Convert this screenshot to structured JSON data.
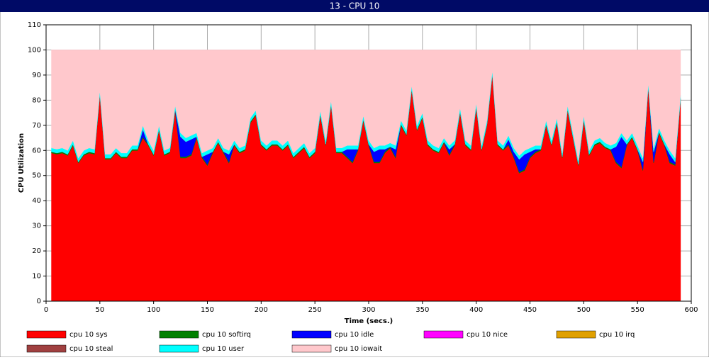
{
  "chart_data": {
    "type": "stacked_area",
    "title": "13 - CPU 10",
    "xlabel": "Time (secs.)",
    "ylabel": "CPU Utilization",
    "xlim": [
      0,
      600
    ],
    "xticks": [
      0,
      50,
      100,
      150,
      200,
      250,
      300,
      350,
      400,
      450,
      500,
      550,
      600
    ],
    "ylim": [
      0,
      110
    ],
    "yticks": [
      0,
      10,
      20,
      30,
      40,
      50,
      60,
      70,
      80,
      90,
      100,
      110
    ],
    "grid": true,
    "x": [
      5,
      10,
      15,
      20,
      25,
      30,
      35,
      40,
      45,
      50,
      55,
      60,
      65,
      70,
      75,
      80,
      85,
      90,
      95,
      100,
      105,
      110,
      115,
      120,
      125,
      130,
      135,
      140,
      145,
      150,
      155,
      160,
      165,
      170,
      175,
      180,
      185,
      190,
      195,
      200,
      205,
      210,
      215,
      220,
      225,
      230,
      235,
      240,
      245,
      250,
      255,
      260,
      265,
      270,
      275,
      280,
      285,
      290,
      295,
      300,
      305,
      310,
      315,
      320,
      325,
      330,
      335,
      340,
      345,
      350,
      355,
      360,
      365,
      370,
      375,
      380,
      385,
      390,
      395,
      400,
      405,
      410,
      415,
      420,
      425,
      430,
      435,
      440,
      445,
      450,
      455,
      460,
      465,
      470,
      475,
      480,
      485,
      490,
      495,
      500,
      505,
      510,
      515,
      520,
      525,
      530,
      535,
      540,
      545,
      550,
      555,
      560,
      565,
      570,
      575,
      580,
      585,
      590
    ],
    "series": [
      {
        "name": "cpu 10 sys",
        "color": "#ff0000",
        "values": [
          59,
          58.5,
          59,
          58,
          62,
          55,
          58,
          59,
          58.5,
          82,
          56.5,
          56.5,
          59,
          57,
          57,
          60,
          60,
          65,
          62,
          58,
          68,
          58,
          59,
          76,
          57,
          57,
          58,
          65,
          57,
          54,
          59,
          63,
          59,
          55,
          62,
          59,
          60,
          71,
          74,
          62,
          60,
          62,
          62,
          60,
          62,
          57,
          59,
          61,
          57,
          59,
          74,
          62,
          78,
          59,
          59,
          57,
          55,
          60,
          72,
          62,
          55,
          55,
          59,
          61,
          57,
          70,
          66,
          84,
          68,
          73,
          62,
          60,
          59,
          63,
          58,
          62,
          75,
          62,
          60,
          77,
          60,
          70,
          90,
          62,
          60,
          62,
          57,
          51,
          52,
          57,
          59,
          60,
          70,
          62,
          71,
          57,
          76,
          65,
          54,
          72,
          58,
          62,
          63,
          61,
          60,
          55,
          53,
          62,
          65,
          60,
          52,
          85,
          55,
          67,
          62,
          55,
          54,
          80
        ]
      },
      {
        "name": "cpu 10 softirq",
        "color": "#008000",
        "values": [
          0.5,
          0.5,
          0.5,
          0.5,
          0.5,
          0.5,
          0.5,
          0.5,
          0.5,
          0.5,
          0.5,
          0.5,
          0.5,
          0.5,
          0.5,
          0.5,
          0.5,
          0.5,
          0.5,
          0.5,
          0.5,
          0.5,
          0.5,
          0.5,
          0.5,
          0.5,
          0.5,
          0.5,
          0.5,
          0.5,
          0.5,
          0.5,
          0.5,
          0.5,
          0.5,
          0.5,
          0.5,
          0.5,
          0.5,
          0.5,
          0.5,
          0.5,
          0.5,
          0.5,
          0.5,
          0.5,
          0.5,
          0.5,
          0.5,
          0.5,
          0.5,
          0.5,
          0.5,
          0.5,
          0.5,
          0.5,
          0.5,
          0.5,
          0.5,
          0.5,
          0.5,
          0.5,
          0.5,
          0.5,
          0.5,
          0.5,
          0.5,
          0.5,
          0.5,
          0.5,
          0.5,
          0.5,
          0.5,
          0.5,
          0.5,
          0.5,
          0.5,
          0.5,
          0.5,
          0.5,
          0.5,
          0.5,
          0.5,
          0.5,
          0.5,
          0.5,
          0.5,
          0.5,
          0.5,
          0.5,
          0.5,
          0.5,
          0.5,
          0.5,
          0.5,
          0.5,
          0.5,
          0.5,
          0.5,
          0.5,
          0.5,
          0.5,
          0.5,
          0.5,
          0.5,
          0.5,
          0.5,
          0.5,
          0.5,
          0.5,
          0.5,
          0.5,
          0.5,
          0.5,
          0.5,
          0.5,
          0.5,
          0.5
        ]
      },
      {
        "name": "cpu 10 idle",
        "color": "#0000ff",
        "values": [
          0,
          0,
          0,
          0,
          0,
          0,
          0,
          0,
          0,
          0,
          0,
          0,
          0,
          0,
          0,
          0,
          0,
          3,
          0,
          0,
          0,
          0,
          0,
          0,
          8,
          6,
          6,
          0,
          0,
          4,
          0,
          0,
          0,
          3,
          0,
          0,
          0,
          0,
          0,
          0,
          0,
          0,
          0,
          0,
          0,
          0,
          0,
          0,
          0,
          0,
          0,
          0,
          0,
          0,
          0,
          3,
          5,
          0,
          0,
          0,
          4,
          5,
          1,
          0,
          3,
          0,
          0,
          0,
          0,
          0,
          0,
          0,
          0,
          0,
          2,
          0,
          0,
          0,
          0,
          0,
          0,
          0,
          0,
          0,
          0,
          2,
          2,
          5,
          6,
          2,
          1,
          0,
          0,
          0,
          0,
          0,
          0,
          0,
          0,
          0,
          0,
          0,
          0,
          0,
          0,
          6,
          12,
          0,
          0,
          0,
          3,
          0,
          4,
          0,
          0,
          3,
          1,
          0
        ]
      },
      {
        "name": "cpu 10 nice",
        "color": "#ff00ff",
        "values": [
          0,
          0,
          0,
          0,
          0,
          0,
          0,
          0,
          0,
          0,
          0,
          0,
          0,
          0,
          0,
          0,
          0,
          0,
          0,
          0,
          0,
          0,
          0,
          0,
          0,
          0,
          0,
          0,
          0,
          0,
          0,
          0,
          0,
          0,
          0,
          0,
          0,
          0,
          0,
          0,
          0,
          0,
          0,
          0,
          0,
          0,
          0,
          0,
          0,
          0,
          0,
          0,
          0,
          0,
          0,
          0,
          0,
          0,
          0,
          0,
          0,
          0,
          0,
          0,
          0,
          0,
          0,
          0,
          0,
          0,
          0,
          0,
          0,
          0,
          0,
          0,
          0,
          0,
          0,
          0,
          0,
          0,
          0,
          0,
          0,
          0,
          0,
          0,
          0,
          0,
          0,
          0,
          0,
          0,
          0,
          0,
          0,
          0,
          0,
          0,
          0,
          0,
          0,
          0,
          0,
          0,
          0,
          0,
          0,
          0,
          0,
          0,
          0,
          0,
          0,
          0,
          0,
          0
        ]
      },
      {
        "name": "cpu 10 irq",
        "color": "#e0a000",
        "values": [
          0,
          0,
          0,
          0,
          0,
          0,
          0,
          0,
          0,
          0,
          0,
          0,
          0,
          0,
          0,
          0,
          0,
          0,
          0,
          0,
          0,
          0,
          0,
          0,
          0,
          0,
          0,
          0,
          0,
          0,
          0,
          0,
          0,
          0,
          0,
          0,
          0,
          0,
          0,
          0,
          0,
          0,
          0,
          0,
          0,
          0,
          0,
          0,
          0,
          0,
          0,
          0,
          0,
          0,
          0,
          0,
          0,
          0,
          0,
          0,
          0,
          0,
          0,
          0,
          0,
          0,
          0,
          0,
          0,
          0,
          0,
          0,
          0,
          0,
          0,
          0,
          0,
          0,
          0,
          0,
          0,
          0,
          0,
          0,
          0,
          0,
          0,
          0,
          0,
          0,
          0,
          0,
          0,
          0,
          0,
          0,
          0,
          0,
          0,
          0,
          0,
          0,
          0,
          0,
          0,
          0,
          0,
          0,
          0,
          0,
          0,
          0,
          0,
          0,
          0,
          0,
          0,
          0
        ]
      },
      {
        "name": "cpu 10 steal",
        "color": "#a04040",
        "values": [
          0,
          0,
          0,
          0,
          0,
          0,
          0,
          0,
          0,
          0,
          0,
          0,
          0,
          0,
          0,
          0,
          0,
          0,
          0,
          0,
          0,
          0,
          0,
          0,
          0,
          0,
          0,
          0,
          0,
          0,
          0,
          0,
          0,
          0,
          0,
          0,
          0,
          0,
          0,
          0,
          0,
          0,
          0,
          0,
          0,
          0,
          0,
          0,
          0,
          0,
          0,
          0,
          0,
          0,
          0,
          0,
          0,
          0,
          0,
          0,
          0,
          0,
          0,
          0,
          0,
          0,
          0,
          0,
          0,
          0,
          0,
          0,
          0,
          0,
          0,
          0,
          0,
          0,
          0,
          0,
          0,
          0,
          0,
          0,
          0,
          0,
          0,
          0,
          0,
          0,
          0,
          0,
          0,
          0,
          0,
          0,
          0,
          0,
          0,
          0,
          0,
          0,
          0,
          0,
          0,
          0,
          0,
          0,
          0,
          0,
          0,
          0,
          0,
          0,
          0,
          0,
          0,
          0
        ]
      },
      {
        "name": "cpu 10 user",
        "color": "#00ffff",
        "values": [
          1.5,
          1.5,
          1.5,
          1.5,
          1.5,
          1.5,
          1.5,
          1.5,
          1.5,
          1.5,
          1.5,
          1.5,
          1.5,
          1.5,
          1.5,
          1.5,
          1.5,
          1.5,
          1.5,
          1.5,
          1.5,
          1.5,
          1.5,
          1.5,
          1.5,
          1.5,
          1.5,
          1.5,
          1.5,
          1.5,
          1.5,
          1.5,
          1.5,
          1.5,
          1.5,
          1.5,
          1.5,
          1.5,
          1.5,
          1.5,
          1.5,
          1.5,
          1.5,
          1.5,
          1.5,
          1.5,
          1.5,
          1.5,
          1.5,
          1.5,
          1.5,
          1.5,
          1.5,
          1.5,
          1.5,
          1.5,
          1.5,
          1.5,
          1.5,
          1.5,
          1.5,
          1.5,
          1.5,
          1.5,
          1.5,
          1.5,
          1.5,
          1.5,
          1.5,
          1.5,
          1.5,
          1.5,
          1.5,
          1.5,
          1.5,
          1.5,
          1.5,
          1.5,
          1.5,
          1.5,
          1.5,
          1.5,
          1.5,
          1.5,
          1.5,
          1.5,
          1.5,
          1.5,
          1.5,
          1.5,
          1.5,
          1.5,
          1.5,
          1.5,
          1.5,
          1.5,
          1.5,
          1.5,
          1.5,
          1.5,
          1.5,
          1.5,
          1.5,
          1.5,
          1.5,
          1.5,
          1.5,
          1.5,
          1.5,
          1.5,
          1.5,
          1.5,
          1.5,
          1.5,
          1.5,
          1.5,
          1.5,
          1.5
        ]
      },
      {
        "name": "cpu 10 iowait",
        "color": "#ffc8cc",
        "values": [
          39,
          39.5,
          39,
          40,
          36,
          43,
          40,
          39,
          39.5,
          16,
          41.5,
          41.5,
          39,
          41,
          41,
          38,
          38,
          30,
          36,
          40,
          30,
          40,
          39,
          22,
          33,
          35,
          34,
          33,
          41,
          40,
          39,
          35,
          39,
          40,
          36,
          39,
          38,
          27,
          24,
          36,
          38,
          36,
          36,
          38,
          36,
          41,
          39,
          37,
          41,
          39,
          24,
          36,
          20,
          39,
          39,
          38,
          38,
          38,
          26,
          36,
          39,
          38,
          38,
          37,
          38,
          28,
          32,
          14,
          30,
          25,
          36,
          38,
          39,
          35,
          38,
          36,
          23,
          36,
          38,
          21,
          38,
          28,
          8,
          36,
          38,
          34,
          39,
          42,
          40,
          39,
          38,
          38,
          28,
          36,
          27,
          41,
          22,
          33,
          44,
          26,
          40,
          36,
          35,
          37,
          38,
          37,
          33,
          36,
          33,
          38,
          43,
          13,
          39,
          31,
          36,
          40,
          43,
          18
        ]
      }
    ]
  }
}
